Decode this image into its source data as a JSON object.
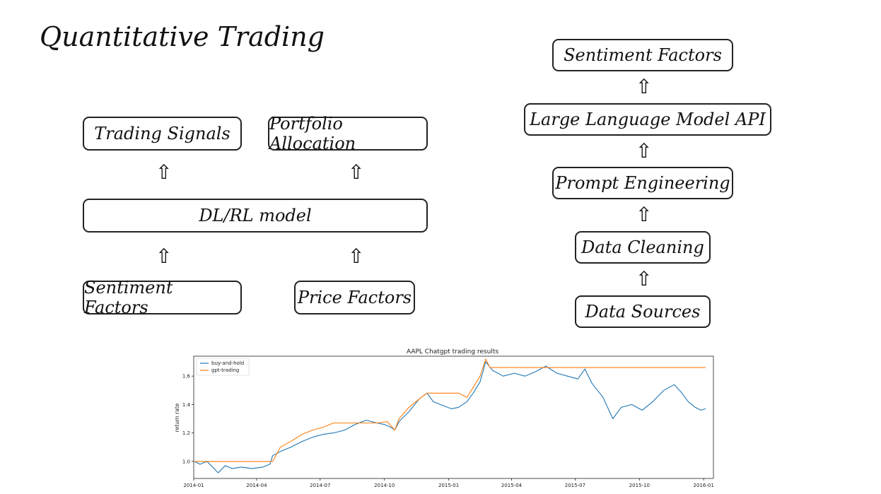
{
  "title": "Quantitative Trading",
  "left_diagram": {
    "top_boxes": [
      "Trading Signals",
      "Portfolio Allocation"
    ],
    "model": "DL/RL model",
    "bottom_boxes": [
      "Sentiment Factors",
      "Price Factors"
    ]
  },
  "right_diagram": {
    "steps": [
      "Sentiment Factors",
      "Large Language Model API",
      "Prompt Engineering",
      "Data Cleaning",
      "Data Sources"
    ]
  },
  "arrow_glyph": "⇧",
  "chart_data": {
    "type": "line",
    "title": "AAPL Chatgpt trading results",
    "xlabel": "",
    "ylabel": "return rate",
    "x_ticks": [
      "2014-01",
      "2014-04",
      "2014-07",
      "2014-10",
      "2015-01",
      "2015-04",
      "2015-07",
      "2015-10",
      "2016-01"
    ],
    "y_ticks": [
      "1.0",
      "1.2",
      "1.4",
      "1.6"
    ],
    "xlim": [
      "2014-01-01",
      "2016-01-15"
    ],
    "ylim": [
      0.88,
      1.74
    ],
    "legend_position": "top-left",
    "grid": false,
    "series": [
      {
        "name": "buy-and-hold",
        "color": "#1f77b4",
        "points": [
          [
            "2014-01-02",
            1.0
          ],
          [
            "2014-01-10",
            0.98
          ],
          [
            "2014-01-20",
            1.0
          ],
          [
            "2014-01-28",
            0.96
          ],
          [
            "2014-02-05",
            0.92
          ],
          [
            "2014-02-15",
            0.97
          ],
          [
            "2014-02-25",
            0.95
          ],
          [
            "2014-03-10",
            0.96
          ],
          [
            "2014-03-25",
            0.95
          ],
          [
            "2014-04-10",
            0.96
          ],
          [
            "2014-04-20",
            0.98
          ],
          [
            "2014-04-24",
            1.04
          ],
          [
            "2014-05-05",
            1.07
          ],
          [
            "2014-05-20",
            1.1
          ],
          [
            "2014-06-05",
            1.14
          ],
          [
            "2014-06-20",
            1.17
          ],
          [
            "2014-07-05",
            1.19
          ],
          [
            "2014-07-20",
            1.2
          ],
          [
            "2014-08-05",
            1.22
          ],
          [
            "2014-08-20",
            1.26
          ],
          [
            "2014-09-05",
            1.29
          ],
          [
            "2014-09-20",
            1.27
          ],
          [
            "2014-10-01",
            1.26
          ],
          [
            "2014-10-10",
            1.24
          ],
          [
            "2014-10-16",
            1.22
          ],
          [
            "2014-10-22",
            1.28
          ],
          [
            "2014-11-05",
            1.35
          ],
          [
            "2014-11-20",
            1.44
          ],
          [
            "2014-12-01",
            1.48
          ],
          [
            "2014-12-10",
            1.42
          ],
          [
            "2014-12-20",
            1.4
          ],
          [
            "2015-01-05",
            1.37
          ],
          [
            "2015-01-15",
            1.38
          ],
          [
            "2015-01-27",
            1.42
          ],
          [
            "2015-02-05",
            1.48
          ],
          [
            "2015-02-15",
            1.56
          ],
          [
            "2015-02-23",
            1.7
          ],
          [
            "2015-03-05",
            1.64
          ],
          [
            "2015-03-20",
            1.6
          ],
          [
            "2015-04-05",
            1.62
          ],
          [
            "2015-04-20",
            1.6
          ],
          [
            "2015-05-05",
            1.63
          ],
          [
            "2015-05-20",
            1.67
          ],
          [
            "2015-06-05",
            1.62
          ],
          [
            "2015-06-20",
            1.6
          ],
          [
            "2015-07-05",
            1.58
          ],
          [
            "2015-07-15",
            1.65
          ],
          [
            "2015-07-25",
            1.55
          ],
          [
            "2015-08-10",
            1.45
          ],
          [
            "2015-08-24",
            1.3
          ],
          [
            "2015-09-05",
            1.38
          ],
          [
            "2015-09-20",
            1.4
          ],
          [
            "2015-10-05",
            1.36
          ],
          [
            "2015-10-20",
            1.42
          ],
          [
            "2015-11-05",
            1.5
          ],
          [
            "2015-11-20",
            1.54
          ],
          [
            "2015-12-01",
            1.48
          ],
          [
            "2015-12-10",
            1.42
          ],
          [
            "2015-12-20",
            1.38
          ],
          [
            "2015-12-28",
            1.36
          ],
          [
            "2016-01-04",
            1.37
          ]
        ]
      },
      {
        "name": "gpt-trading",
        "color": "#ff7f0e",
        "points": [
          [
            "2014-01-02",
            1.0
          ],
          [
            "2014-04-24",
            1.0
          ],
          [
            "2014-05-05",
            1.1
          ],
          [
            "2014-05-20",
            1.14
          ],
          [
            "2014-06-05",
            1.19
          ],
          [
            "2014-06-20",
            1.22
          ],
          [
            "2014-07-05",
            1.24
          ],
          [
            "2014-07-20",
            1.27
          ],
          [
            "2014-09-20",
            1.27
          ],
          [
            "2014-10-05",
            1.28
          ],
          [
            "2014-10-16",
            1.22
          ],
          [
            "2014-10-22",
            1.3
          ],
          [
            "2014-11-05",
            1.38
          ],
          [
            "2014-11-20",
            1.44
          ],
          [
            "2014-12-01",
            1.48
          ],
          [
            "2015-01-15",
            1.48
          ],
          [
            "2015-01-27",
            1.45
          ],
          [
            "2015-02-05",
            1.52
          ],
          [
            "2015-02-15",
            1.6
          ],
          [
            "2015-02-23",
            1.72
          ],
          [
            "2015-03-01",
            1.66
          ],
          [
            "2016-01-04",
            1.66
          ]
        ]
      }
    ]
  }
}
